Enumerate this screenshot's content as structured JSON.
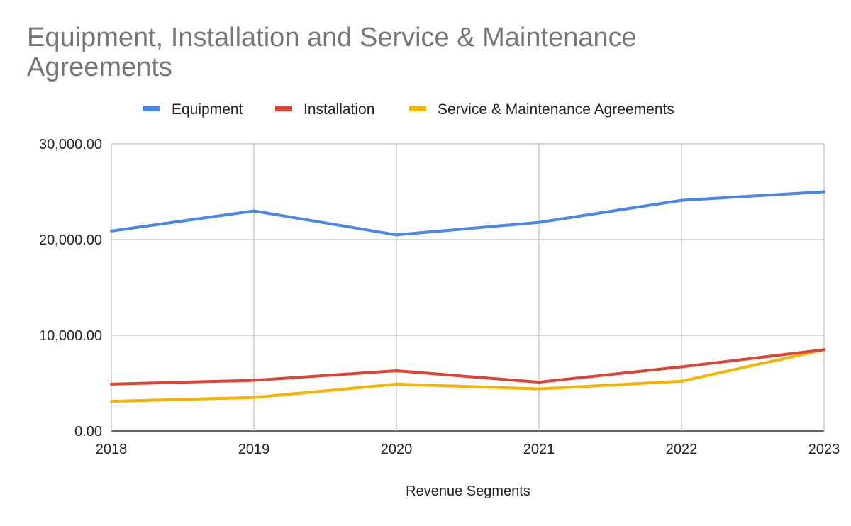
{
  "chart_data": {
    "type": "line",
    "title": "Equipment, Installation and Service & Maintenance Agreements",
    "xlabel": "Revenue Segments",
    "ylabel": "",
    "x": [
      "2018",
      "2019",
      "2020",
      "2021",
      "2022",
      "2023"
    ],
    "y_ticks": [
      "0.00",
      "10,000.00",
      "20,000.00",
      "30,000.00"
    ],
    "ylim": [
      0,
      30000
    ],
    "grid": true,
    "legend_position": "top",
    "series": [
      {
        "name": "Equipment",
        "color": "#4a86e8",
        "values": [
          20900,
          23000,
          20500,
          21800,
          24100,
          25000
        ]
      },
      {
        "name": "Installation",
        "color": "#db4437",
        "values": [
          4900,
          5300,
          6300,
          5100,
          6700,
          8500
        ]
      },
      {
        "name": "Service & Maintenance Agreements",
        "color": "#f4b400",
        "values": [
          3100,
          3500,
          4900,
          4400,
          5200,
          8500
        ]
      }
    ]
  }
}
